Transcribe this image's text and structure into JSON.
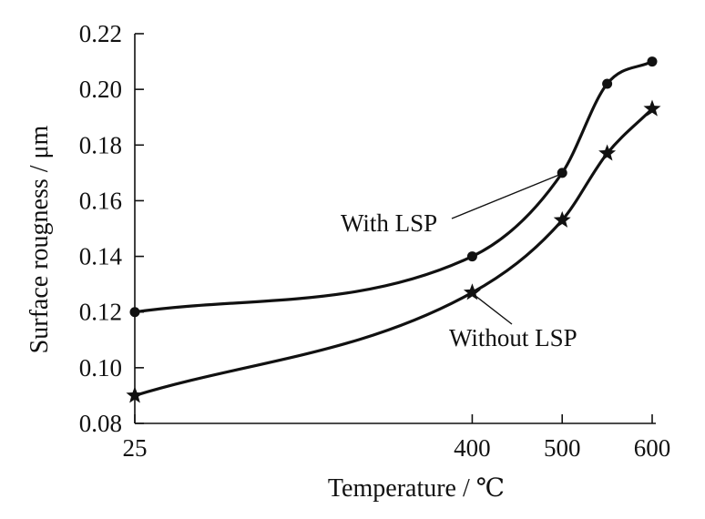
{
  "chart_data": {
    "type": "line",
    "xlabel": "Temperature / ℃",
    "ylabel": "Surface rougness / μm",
    "x": [
      25,
      400,
      500,
      550,
      600
    ],
    "xticks": [
      25,
      400,
      500,
      600
    ],
    "xlim": [
      25,
      600
    ],
    "ylim": [
      0.08,
      0.22
    ],
    "yticks": [
      0.08,
      0.1,
      0.12,
      0.14,
      0.16,
      0.18,
      0.2,
      0.22
    ],
    "ytick_labels": [
      "0.08",
      "0.10",
      "0.12",
      "0.14",
      "0.16",
      "0.18",
      "0.20",
      "0.22"
    ],
    "series": [
      {
        "name": "With LSP",
        "marker": "circle",
        "values": [
          0.12,
          0.14,
          0.17,
          0.202,
          0.21
        ]
      },
      {
        "name": "Without LSP",
        "marker": "star",
        "values": [
          0.09,
          0.127,
          0.153,
          0.177,
          0.193
        ]
      }
    ],
    "annotations": [
      {
        "text": "With LSP",
        "series": 0,
        "point_index": 2
      },
      {
        "text": "Without LSP",
        "series": 1,
        "point_index": 1
      }
    ],
    "grid": false,
    "legend": "none",
    "color": "#111111"
  }
}
